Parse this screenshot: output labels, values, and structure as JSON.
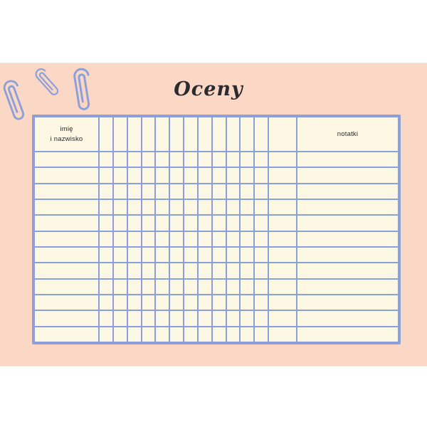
{
  "page": {
    "title": "Oceny"
  },
  "table": {
    "header": {
      "name_label_line1": "imię",
      "name_label_line2": "i nazwisko",
      "notes_label": "notatki"
    },
    "grade_columns": 12,
    "wide_columns": 1,
    "data_rows": 12
  },
  "decorations": {
    "paperclips": 3
  },
  "colors": {
    "background": "#ffffff",
    "page_background": "#fbd7c5",
    "cell_fill": "#fcf8e3",
    "grid_line": "#8c9fd8",
    "title_text": "#2b2a2f",
    "header_text": "#2b2a2f"
  }
}
